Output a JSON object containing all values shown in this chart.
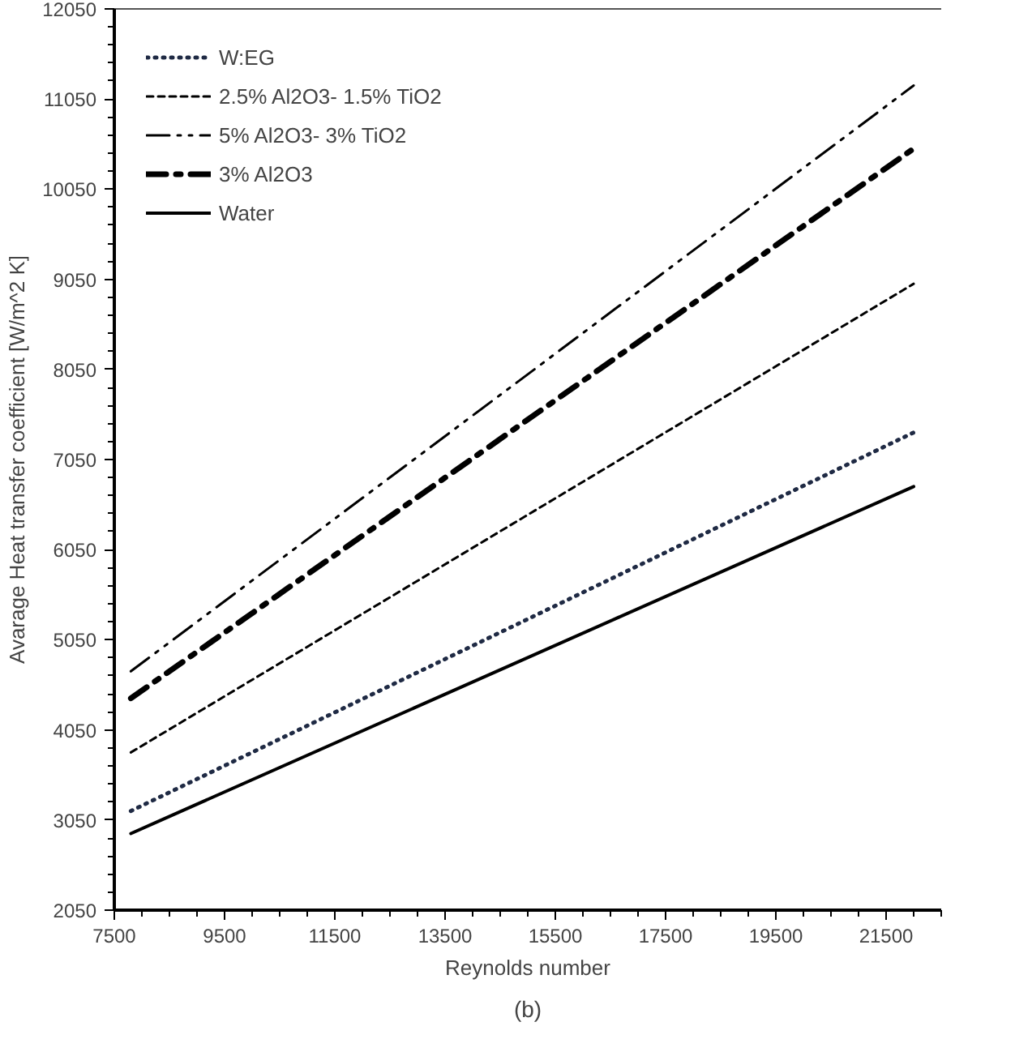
{
  "chart_data": {
    "type": "line",
    "xlabel": "Reynolds number",
    "ylabel": "Avarage Heat transfer coefficient [W/m^2 K]",
    "annotations": [
      "(b)"
    ],
    "xlim": [
      7500,
      22500
    ],
    "xticks": [
      7500,
      9500,
      11500,
      13500,
      15500,
      17500,
      19500,
      21500
    ],
    "ylim": [
      2050,
      12050
    ],
    "yticks": [
      2050,
      3050,
      4050,
      5050,
      6050,
      7050,
      8050,
      9050,
      10050,
      11050,
      12050
    ],
    "x": [
      7800,
      22000
    ],
    "grid": false,
    "legend": "top left",
    "marker": "none",
    "series": [
      {
        "name": "W:EG",
        "color": "#1f2a44",
        "line_style": "dotted",
        "values": [
          3150,
          7350
        ]
      },
      {
        "name": "2.5% Al2O3- 1.5% TiO2",
        "color": "#000000",
        "line_style": "dashed",
        "values": [
          3800,
          9000
        ]
      },
      {
        "name": "5% Al2O3- 3% TiO2",
        "color": "#000000",
        "line_style": "dashdotdot",
        "values": [
          4700,
          11200
        ]
      },
      {
        "name": "3% Al2O3",
        "color": "#000000",
        "line_style": "dashdot",
        "values": [
          4400,
          10500
        ]
      },
      {
        "name": "Water",
        "color": "#000000",
        "line_style": "solid",
        "values": [
          2900,
          6750
        ]
      }
    ]
  }
}
